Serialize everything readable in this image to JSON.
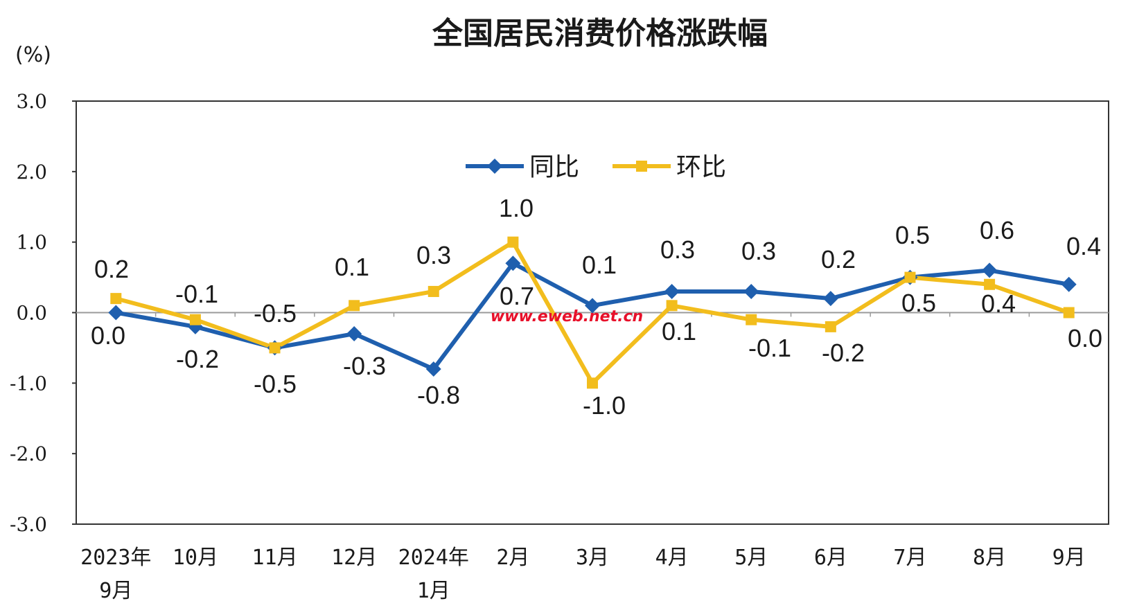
{
  "chart_data": {
    "type": "line",
    "title": "全国居民消费价格涨跌幅",
    "ylabel": "(%)",
    "ylim": [
      -3.0,
      3.0
    ],
    "yticks": [
      "3.0",
      "2.0",
      "1.0",
      "0.0",
      "-1.0",
      "-2.0",
      "-3.0"
    ],
    "ytick_values": [
      3,
      2,
      1,
      0,
      -1,
      -2,
      -3
    ],
    "categories": [
      [
        "2023年",
        "9月"
      ],
      [
        "10月"
      ],
      [
        "11月"
      ],
      [
        "12月"
      ],
      [
        "2024年",
        "1月"
      ],
      [
        "2月"
      ],
      [
        "3月"
      ],
      [
        "4月"
      ],
      [
        "5月"
      ],
      [
        "6月"
      ],
      [
        "7月"
      ],
      [
        "8月"
      ],
      [
        "9月"
      ]
    ],
    "legend_position": "top-center",
    "series": [
      {
        "name": "同比",
        "color": "#1f5fae",
        "marker": "diamond",
        "values": [
          0.0,
          -0.2,
          -0.5,
          -0.3,
          -0.8,
          0.7,
          0.1,
          0.3,
          0.3,
          0.2,
          0.5,
          0.6,
          0.4
        ],
        "labels": [
          "0.0",
          "-0.2",
          "-0.5",
          "-0.3",
          "-0.8",
          "0.7",
          "0.1",
          "0.3",
          "0.3",
          "0.2",
          "0.5",
          "0.6",
          "0.4"
        ]
      },
      {
        "name": "环比",
        "color": "#f2bd1d",
        "marker": "square",
        "values": [
          0.2,
          -0.1,
          -0.5,
          0.1,
          0.3,
          1.0,
          -1.0,
          0.1,
          -0.1,
          -0.2,
          0.5,
          0.4,
          0.0
        ],
        "labels": [
          "0.2",
          "-0.1",
          "-0.5",
          "0.1",
          "0.3",
          "1.0",
          "-1.0",
          "0.1",
          "-0.1",
          "-0.2",
          "0.5",
          "0.4",
          "0.0"
        ]
      }
    ],
    "watermark": "www.eweb.net.cn"
  }
}
